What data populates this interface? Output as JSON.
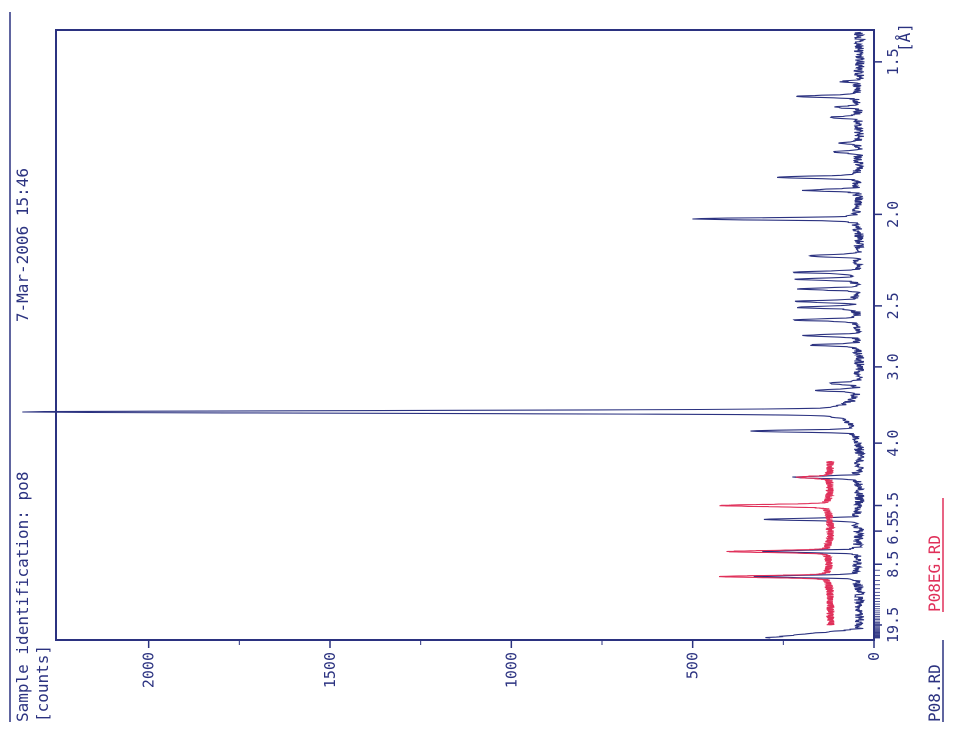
{
  "header": {
    "sample_identification": "Sample identification: po8",
    "timestamp": "7-Mar-2006 15:46"
  },
  "chart_data": {
    "type": "line",
    "orientation": "rotated-90-ccw",
    "ylabel": "[counts]",
    "xlabel": "[Å]",
    "ylim": [
      0,
      2250
    ],
    "y_ticks": [
      {
        "value": 0,
        "label": "0"
      },
      {
        "value": 500,
        "label": "500"
      },
      {
        "value": 1000,
        "label": "1000"
      },
      {
        "value": 1500,
        "label": "1500"
      },
      {
        "value": 2000,
        "label": "2000"
      }
    ],
    "x_axis_scale": "reciprocal (2θ-linear), d-spacing labels",
    "x_ticks": [
      {
        "value": 19.5,
        "label": "19.5"
      },
      {
        "value": 8.5,
        "label": "8.5"
      },
      {
        "value": 6.5,
        "label": "6.5"
      },
      {
        "value": 5.5,
        "label": "5.5"
      },
      {
        "value": 4.0,
        "label": "4.0"
      },
      {
        "value": 3.0,
        "label": "3.0"
      },
      {
        "value": 2.5,
        "label": "2.5"
      },
      {
        "value": 2.0,
        "label": "2.0"
      },
      {
        "value": 1.5,
        "label": "1.5"
      }
    ],
    "series": [
      {
        "name": "P08.RD",
        "color": "#2b3280",
        "baseline": 40,
        "d_range": [
          27,
          1.43
        ],
        "peaks": [
          {
            "d": 9.6,
            "counts": 300
          },
          {
            "d": 7.6,
            "counts": 280
          },
          {
            "d": 6.0,
            "counts": 275
          },
          {
            "d": 4.7,
            "counts": 210
          },
          {
            "d": 3.8,
            "counts": 310
          },
          {
            "d": 3.52,
            "counts": 2190
          },
          {
            "d": 3.25,
            "counts": 140
          },
          {
            "d": 3.17,
            "counts": 120
          },
          {
            "d": 2.8,
            "counts": 160
          },
          {
            "d": 2.72,
            "counts": 175
          },
          {
            "d": 2.6,
            "counts": 200
          },
          {
            "d": 2.51,
            "counts": 200
          },
          {
            "d": 2.47,
            "counts": 200
          },
          {
            "d": 2.39,
            "counts": 190
          },
          {
            "d": 2.33,
            "counts": 195
          },
          {
            "d": 2.29,
            "counts": 200
          },
          {
            "d": 2.2,
            "counts": 180
          },
          {
            "d": 2.02,
            "counts": 470
          },
          {
            "d": 1.9,
            "counts": 175
          },
          {
            "d": 1.85,
            "counts": 250
          },
          {
            "d": 1.76,
            "counts": 100
          },
          {
            "d": 1.73,
            "counts": 90
          },
          {
            "d": 1.65,
            "counts": 110
          },
          {
            "d": 1.62,
            "counts": 100
          },
          {
            "d": 1.59,
            "counts": 200
          },
          {
            "d": 1.55,
            "counts": 80
          }
        ]
      },
      {
        "name": "P08EG.RD",
        "color": "#e0305a",
        "baseline": 120,
        "d_range": [
          19.5,
          4.35
        ],
        "peaks": [
          {
            "d": 9.6,
            "counts": 400
          },
          {
            "d": 7.6,
            "counts": 380
          },
          {
            "d": 5.5,
            "counts": 400
          },
          {
            "d": 4.7,
            "counts": 200
          }
        ]
      }
    ]
  }
}
